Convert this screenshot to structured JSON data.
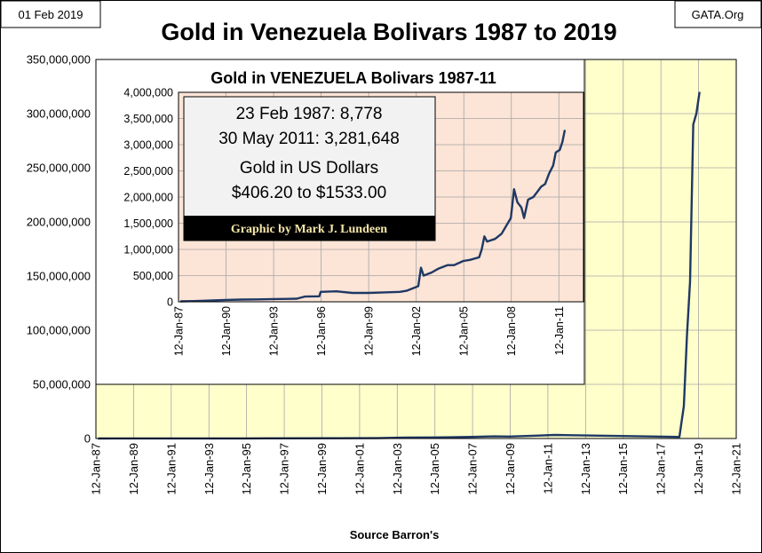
{
  "date_label": "01 Feb 2019",
  "site_label": "GATA.Org",
  "source_label": "Source Barron's",
  "chart_data": [
    {
      "type": "line",
      "title": "Gold in Venezuela Bolivars 1987 to 2019",
      "xlabel": "",
      "ylabel": "",
      "ylim": [
        0,
        350000000
      ],
      "y_ticks": [
        "0",
        "50,000,000",
        "100,000,000",
        "150,000,000",
        "200,000,000",
        "250,000,000",
        "300,000,000",
        "350,000,000"
      ],
      "x_ticks": [
        "12-Jan-87",
        "12-Jan-89",
        "12-Jan-91",
        "12-Jan-93",
        "12-Jan-95",
        "12-Jan-97",
        "12-Jan-99",
        "12-Jan-01",
        "12-Jan-03",
        "12-Jan-05",
        "12-Jan-07",
        "12-Jan-09",
        "12-Jan-11",
        "12-Jan-13",
        "12-Jan-15",
        "12-Jan-17",
        "12-Jan-19",
        "12-Jan-21"
      ],
      "xlim": [
        "1987-01-12",
        "2021-01-12"
      ],
      "grid": true,
      "background": "#ffffcc",
      "line_color": "#1f3864",
      "series": [
        {
          "x": [
            "1987-02-23",
            "1990-01-01",
            "1995-01-01",
            "1996-01-01",
            "2002-01-01",
            "2003-06-01",
            "2005-01-01",
            "2007-01-01",
            "2008-03-01",
            "2009-01-01",
            "2010-06-01",
            "2011-05-30",
            "2018-01-05",
            "2018-04-01",
            "2018-06-01",
            "2018-08-01",
            "2018-10-01",
            "2018-12-01",
            "2019-01-31"
          ],
          "y": [
            8778,
            60000,
            100000,
            200000,
            300000,
            800000,
            1000000,
            1500000,
            2000000,
            1800000,
            2600000,
            3281648,
            1500000,
            30000000,
            95000000,
            145000000,
            290000000,
            300000000,
            320000000
          ]
        }
      ]
    },
    {
      "type": "line",
      "title": "Gold in VENEZUELA Bolivars 1987-11",
      "xlabel": "",
      "ylabel": "",
      "ylim": [
        0,
        4000000
      ],
      "y_ticks": [
        "0",
        "500,000",
        "1,000,000",
        "1,500,000",
        "2,000,000",
        "2,500,000",
        "3,000,000",
        "3,500,000",
        "4,000,000"
      ],
      "x_ticks": [
        "12-Jan-87",
        "12-Jan-90",
        "12-Jan-93",
        "12-Jan-96",
        "12-Jan-99",
        "12-Jan-02",
        "12-Jan-05",
        "12-Jan-08",
        "12-Jan-11"
      ],
      "xlim": [
        "1987-01-12",
        "2012-08-01"
      ],
      "grid": true,
      "background": "#fce4d6",
      "line_color": "#1f3864",
      "annotations": [
        "23 Feb 1987: 8,778",
        "30 May 2011: 3,281,648",
        "Gold in US Dollars",
        "$406.20 to $1533.00"
      ],
      "credit": "Graphic by Mark J. Lundeen",
      "series": [
        {
          "x": [
            "1987-02-23",
            "1988-01-01",
            "1989-01-01",
            "1990-01-01",
            "1991-01-01",
            "1992-01-01",
            "1993-01-01",
            "1994-01-01",
            "1994-07-01",
            "1995-01-01",
            "1995-12-01",
            "1996-01-01",
            "1997-01-01",
            "1998-01-01",
            "1999-01-01",
            "2000-01-01",
            "2001-01-01",
            "2001-06-01",
            "2002-01-01",
            "2002-03-01",
            "2002-05-01",
            "2002-07-01",
            "2003-01-01",
            "2003-06-01",
            "2004-01-01",
            "2004-06-01",
            "2005-01-01",
            "2005-06-01",
            "2006-01-01",
            "2006-03-01",
            "2006-05-01",
            "2006-07-01",
            "2007-01-01",
            "2007-06-01",
            "2008-01-01",
            "2008-03-15",
            "2008-06-01",
            "2008-09-01",
            "2008-11-01",
            "2009-02-01",
            "2009-06-01",
            "2009-09-01",
            "2009-12-01",
            "2010-03-01",
            "2010-06-01",
            "2010-09-01",
            "2010-11-01",
            "2011-02-01",
            "2011-04-01",
            "2011-05-30"
          ],
          "y": [
            8778,
            14000,
            23000,
            35000,
            42000,
            46000,
            52000,
            56000,
            60000,
            100000,
            105000,
            190000,
            200000,
            170000,
            170000,
            180000,
            190000,
            210000,
            280000,
            300000,
            650000,
            500000,
            560000,
            630000,
            700000,
            700000,
            780000,
            800000,
            850000,
            1000000,
            1250000,
            1150000,
            1200000,
            1300000,
            1600000,
            2150000,
            1900000,
            1800000,
            1600000,
            1950000,
            2000000,
            2100000,
            2200000,
            2250000,
            2450000,
            2600000,
            2850000,
            2900000,
            3050000,
            3281648
          ]
        }
      ]
    }
  ]
}
